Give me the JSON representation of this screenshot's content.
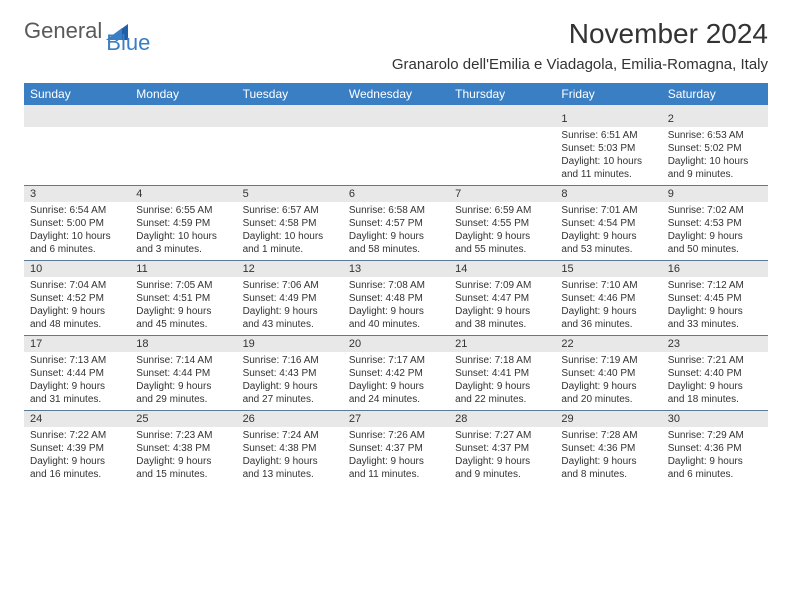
{
  "logo": {
    "general": "General",
    "blue": "Blue"
  },
  "title": "November 2024",
  "location": "Granarolo dell'Emilia e Viadagola, Emilia-Romagna, Italy",
  "colors": {
    "header_bg": "#3a7fc4",
    "header_text": "#ffffff",
    "band_bg": "#e8e8e8",
    "rule": "#5a7a9a",
    "text": "#333333",
    "logo_gray": "#595959",
    "logo_blue": "#3a7fc4",
    "page_bg": "#ffffff"
  },
  "weekdays": [
    "Sunday",
    "Monday",
    "Tuesday",
    "Wednesday",
    "Thursday",
    "Friday",
    "Saturday"
  ],
  "weeks": [
    [
      {
        "n": "",
        "sunrise": "",
        "sunset": "",
        "daylight": ""
      },
      {
        "n": "",
        "sunrise": "",
        "sunset": "",
        "daylight": ""
      },
      {
        "n": "",
        "sunrise": "",
        "sunset": "",
        "daylight": ""
      },
      {
        "n": "",
        "sunrise": "",
        "sunset": "",
        "daylight": ""
      },
      {
        "n": "",
        "sunrise": "",
        "sunset": "",
        "daylight": ""
      },
      {
        "n": "1",
        "sunrise": "Sunrise: 6:51 AM",
        "sunset": "Sunset: 5:03 PM",
        "daylight": "Daylight: 10 hours and 11 minutes."
      },
      {
        "n": "2",
        "sunrise": "Sunrise: 6:53 AM",
        "sunset": "Sunset: 5:02 PM",
        "daylight": "Daylight: 10 hours and 9 minutes."
      }
    ],
    [
      {
        "n": "3",
        "sunrise": "Sunrise: 6:54 AM",
        "sunset": "Sunset: 5:00 PM",
        "daylight": "Daylight: 10 hours and 6 minutes."
      },
      {
        "n": "4",
        "sunrise": "Sunrise: 6:55 AM",
        "sunset": "Sunset: 4:59 PM",
        "daylight": "Daylight: 10 hours and 3 minutes."
      },
      {
        "n": "5",
        "sunrise": "Sunrise: 6:57 AM",
        "sunset": "Sunset: 4:58 PM",
        "daylight": "Daylight: 10 hours and 1 minute."
      },
      {
        "n": "6",
        "sunrise": "Sunrise: 6:58 AM",
        "sunset": "Sunset: 4:57 PM",
        "daylight": "Daylight: 9 hours and 58 minutes."
      },
      {
        "n": "7",
        "sunrise": "Sunrise: 6:59 AM",
        "sunset": "Sunset: 4:55 PM",
        "daylight": "Daylight: 9 hours and 55 minutes."
      },
      {
        "n": "8",
        "sunrise": "Sunrise: 7:01 AM",
        "sunset": "Sunset: 4:54 PM",
        "daylight": "Daylight: 9 hours and 53 minutes."
      },
      {
        "n": "9",
        "sunrise": "Sunrise: 7:02 AM",
        "sunset": "Sunset: 4:53 PM",
        "daylight": "Daylight: 9 hours and 50 minutes."
      }
    ],
    [
      {
        "n": "10",
        "sunrise": "Sunrise: 7:04 AM",
        "sunset": "Sunset: 4:52 PM",
        "daylight": "Daylight: 9 hours and 48 minutes."
      },
      {
        "n": "11",
        "sunrise": "Sunrise: 7:05 AM",
        "sunset": "Sunset: 4:51 PM",
        "daylight": "Daylight: 9 hours and 45 minutes."
      },
      {
        "n": "12",
        "sunrise": "Sunrise: 7:06 AM",
        "sunset": "Sunset: 4:49 PM",
        "daylight": "Daylight: 9 hours and 43 minutes."
      },
      {
        "n": "13",
        "sunrise": "Sunrise: 7:08 AM",
        "sunset": "Sunset: 4:48 PM",
        "daylight": "Daylight: 9 hours and 40 minutes."
      },
      {
        "n": "14",
        "sunrise": "Sunrise: 7:09 AM",
        "sunset": "Sunset: 4:47 PM",
        "daylight": "Daylight: 9 hours and 38 minutes."
      },
      {
        "n": "15",
        "sunrise": "Sunrise: 7:10 AM",
        "sunset": "Sunset: 4:46 PM",
        "daylight": "Daylight: 9 hours and 36 minutes."
      },
      {
        "n": "16",
        "sunrise": "Sunrise: 7:12 AM",
        "sunset": "Sunset: 4:45 PM",
        "daylight": "Daylight: 9 hours and 33 minutes."
      }
    ],
    [
      {
        "n": "17",
        "sunrise": "Sunrise: 7:13 AM",
        "sunset": "Sunset: 4:44 PM",
        "daylight": "Daylight: 9 hours and 31 minutes."
      },
      {
        "n": "18",
        "sunrise": "Sunrise: 7:14 AM",
        "sunset": "Sunset: 4:44 PM",
        "daylight": "Daylight: 9 hours and 29 minutes."
      },
      {
        "n": "19",
        "sunrise": "Sunrise: 7:16 AM",
        "sunset": "Sunset: 4:43 PM",
        "daylight": "Daylight: 9 hours and 27 minutes."
      },
      {
        "n": "20",
        "sunrise": "Sunrise: 7:17 AM",
        "sunset": "Sunset: 4:42 PM",
        "daylight": "Daylight: 9 hours and 24 minutes."
      },
      {
        "n": "21",
        "sunrise": "Sunrise: 7:18 AM",
        "sunset": "Sunset: 4:41 PM",
        "daylight": "Daylight: 9 hours and 22 minutes."
      },
      {
        "n": "22",
        "sunrise": "Sunrise: 7:19 AM",
        "sunset": "Sunset: 4:40 PM",
        "daylight": "Daylight: 9 hours and 20 minutes."
      },
      {
        "n": "23",
        "sunrise": "Sunrise: 7:21 AM",
        "sunset": "Sunset: 4:40 PM",
        "daylight": "Daylight: 9 hours and 18 minutes."
      }
    ],
    [
      {
        "n": "24",
        "sunrise": "Sunrise: 7:22 AM",
        "sunset": "Sunset: 4:39 PM",
        "daylight": "Daylight: 9 hours and 16 minutes."
      },
      {
        "n": "25",
        "sunrise": "Sunrise: 7:23 AM",
        "sunset": "Sunset: 4:38 PM",
        "daylight": "Daylight: 9 hours and 15 minutes."
      },
      {
        "n": "26",
        "sunrise": "Sunrise: 7:24 AM",
        "sunset": "Sunset: 4:38 PM",
        "daylight": "Daylight: 9 hours and 13 minutes."
      },
      {
        "n": "27",
        "sunrise": "Sunrise: 7:26 AM",
        "sunset": "Sunset: 4:37 PM",
        "daylight": "Daylight: 9 hours and 11 minutes."
      },
      {
        "n": "28",
        "sunrise": "Sunrise: 7:27 AM",
        "sunset": "Sunset: 4:37 PM",
        "daylight": "Daylight: 9 hours and 9 minutes."
      },
      {
        "n": "29",
        "sunrise": "Sunrise: 7:28 AM",
        "sunset": "Sunset: 4:36 PM",
        "daylight": "Daylight: 9 hours and 8 minutes."
      },
      {
        "n": "30",
        "sunrise": "Sunrise: 7:29 AM",
        "sunset": "Sunset: 4:36 PM",
        "daylight": "Daylight: 9 hours and 6 minutes."
      }
    ]
  ]
}
